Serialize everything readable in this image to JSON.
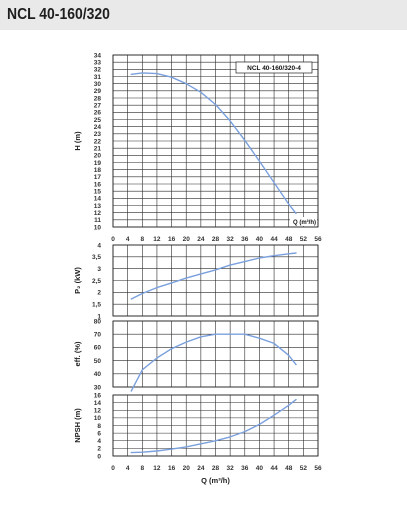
{
  "header": {
    "title": "NCL 40-160/320"
  },
  "chart_data": [
    {
      "type": "line",
      "panel": "head",
      "ylabel": "H (m)",
      "legend": "NCL 40-160/320-4",
      "x_unit_label": "Q (m³/h)",
      "xlim": [
        0,
        56
      ],
      "ylim": [
        10,
        34
      ],
      "x_ticks": [
        0,
        4,
        8,
        12,
        16,
        20,
        24,
        28,
        32,
        36,
        40,
        44,
        48,
        52,
        56
      ],
      "y_ticks": [
        10,
        11,
        12,
        13,
        14,
        15,
        16,
        17,
        18,
        19,
        20,
        21,
        22,
        23,
        24,
        25,
        26,
        27,
        28,
        29,
        30,
        31,
        32,
        33,
        34
      ],
      "line_color": "#7aa0dd",
      "series": [
        {
          "x": [
            5,
            8,
            12,
            16,
            20,
            24,
            28,
            32,
            36,
            40,
            44,
            48,
            50
          ],
          "y": [
            31.3,
            31.5,
            31.4,
            30.9,
            30.0,
            28.8,
            27.1,
            24.8,
            22.1,
            19.2,
            16.2,
            13.2,
            11.9
          ]
        }
      ]
    },
    {
      "type": "line",
      "panel": "power",
      "ylabel": "P₂ (kW)",
      "xlim": [
        0,
        56
      ],
      "ylim": [
        1,
        4
      ],
      "y_ticks": [
        1,
        1.5,
        2,
        2.5,
        3,
        3.5,
        4
      ],
      "y_tick_labels": [
        "1",
        "1,5",
        "2",
        "2,5",
        "3",
        "3,5",
        "4"
      ],
      "line_color": "#7aa0dd",
      "series": [
        {
          "x": [
            5,
            8,
            12,
            16,
            20,
            24,
            28,
            32,
            36,
            40,
            44,
            48,
            50
          ],
          "y": [
            1.72,
            1.95,
            2.2,
            2.4,
            2.6,
            2.78,
            2.95,
            3.15,
            3.3,
            3.45,
            3.55,
            3.63,
            3.66
          ]
        }
      ]
    },
    {
      "type": "line",
      "panel": "efficiency",
      "ylabel": "eff. (%)",
      "xlim": [
        0,
        56
      ],
      "ylim": [
        30,
        80
      ],
      "y_ticks": [
        30,
        40,
        50,
        60,
        70,
        80
      ],
      "line_color": "#7aa0dd",
      "series": [
        {
          "x": [
            5,
            8,
            12,
            16,
            20,
            24,
            28,
            32,
            36,
            40,
            44,
            48,
            50
          ],
          "y": [
            27,
            43,
            52,
            59,
            64,
            68,
            70,
            70,
            70,
            67,
            63,
            54,
            47
          ]
        }
      ]
    },
    {
      "type": "line",
      "panel": "npsh",
      "ylabel": "NPSH (m)",
      "xlabel": "Q (m³/h)",
      "xlim": [
        0,
        56
      ],
      "ylim": [
        0,
        16
      ],
      "x_ticks": [
        0,
        4,
        8,
        12,
        16,
        20,
        24,
        28,
        32,
        36,
        40,
        44,
        48,
        52,
        56
      ],
      "y_ticks": [
        0,
        2,
        4,
        6,
        8,
        10,
        12,
        14,
        16
      ],
      "line_color": "#7aa0dd",
      "series": [
        {
          "x": [
            5,
            8,
            12,
            16,
            20,
            24,
            28,
            32,
            36,
            40,
            44,
            48,
            50
          ],
          "y": [
            0.9,
            1.0,
            1.3,
            1.8,
            2.4,
            3.2,
            4.0,
            5.0,
            6.4,
            8.3,
            10.7,
            13.3,
            14.8
          ]
        }
      ]
    }
  ]
}
